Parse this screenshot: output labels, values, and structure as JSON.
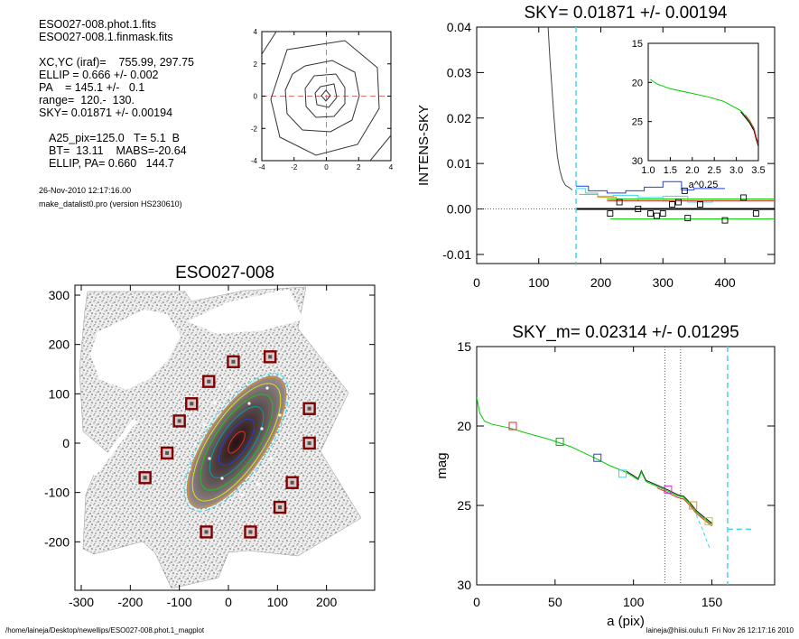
{
  "header": {
    "file1": "ESO027-008.phot.1.fits",
    "file2": "ESO027-008.1.finmask.fits",
    "xcyc": "XC,YC (iraf)=    755.99, 297.75",
    "ellip": "ELLIP = 0.666 +/- 0.002",
    "pa": "PA    = 145.1 +/-   0.1",
    "range": "range=  120.-  130.",
    "sky": "SKY= 0.01871 +/- 0.00194",
    "a25": "A25_pix=125.0   T= 5.1  B",
    "bt": "BT=  13.11    MABS=-20.64",
    "ellip_pa": "ELLIP, PA= 0.660   144.7",
    "date": "26-Nov-2010 12:17:16.00",
    "program": "make_datalist0.pro (version HS230610)"
  },
  "footer": {
    "path": "/home/laineja/Desktop/newellips/ESO027-008.phot.1_magplot",
    "user_date": "laineja@hiisi.oulu.fi  Fri Nov 26 12:17:16 2010"
  },
  "colors": {
    "green": "#00cc00",
    "red": "#e03030",
    "blue": "#2040e0",
    "cyan": "#40d8e8",
    "orange": "#e09020",
    "dark_red": "#800000",
    "gray": "#555555",
    "pink_dash": "#e07070"
  },
  "chart_data": [
    {
      "id": "contour",
      "type": "contour",
      "xlim": [
        -4,
        4
      ],
      "ylim": [
        -4,
        4
      ],
      "xticks": [
        "-4",
        "-2",
        "0",
        "2",
        "4"
      ],
      "yticks": [
        "4",
        "2",
        "0",
        "-2",
        "-4"
      ]
    },
    {
      "id": "sky",
      "type": "line",
      "title": "SKY= 0.01871 +/- 0.00194",
      "ylabel": "INTENS-SKY",
      "xlim": [
        0,
        480
      ],
      "ylim": [
        -0.012,
        0.04
      ],
      "xticks": [
        "0",
        "100",
        "200",
        "300",
        "400"
      ],
      "yticks": [
        "0.04",
        "0.03",
        "0.02",
        "0.01",
        "0.00",
        "-0.01"
      ],
      "sky_radius": 160,
      "profile": [
        [
          115,
          0.04
        ],
        [
          118,
          0.033
        ],
        [
          121,
          0.027
        ],
        [
          124,
          0.021
        ],
        [
          127,
          0.016
        ],
        [
          130,
          0.0115
        ],
        [
          134,
          0.0085
        ],
        [
          138,
          0.0065
        ],
        [
          143,
          0.0052
        ],
        [
          148,
          0.0048
        ],
        [
          154,
          0.0042
        ]
      ],
      "squares": [
        [
          215,
          -0.001
        ],
        [
          230,
          0.0015
        ],
        [
          260,
          0.0
        ],
        [
          280,
          -0.001
        ],
        [
          290,
          -0.0015
        ],
        [
          300,
          -0.001
        ],
        [
          315,
          0.001
        ],
        [
          325,
          0.0015
        ],
        [
          335,
          0.004
        ],
        [
          340,
          -0.002
        ],
        [
          360,
          0.001
        ],
        [
          400,
          -0.0025
        ],
        [
          430,
          0.0025
        ],
        [
          450,
          -0.001
        ]
      ],
      "inset": {
        "xlabel": "a^0.25",
        "xlim": [
          1.0,
          3.5
        ],
        "ylim": [
          15,
          30
        ],
        "xticks": [
          "1.0",
          "1.5",
          "2.0",
          "2.5",
          "3.0",
          "3.5"
        ],
        "yticks": [
          "15",
          "20",
          "25",
          "30"
        ],
        "curve": [
          [
            1.05,
            19.6
          ],
          [
            1.2,
            20.2
          ],
          [
            1.5,
            20.8
          ],
          [
            2.0,
            21.4
          ],
          [
            2.4,
            21.9
          ],
          [
            2.7,
            22.4
          ],
          [
            2.9,
            23.0
          ],
          [
            3.1,
            23.6
          ],
          [
            3.2,
            24.3
          ],
          [
            3.3,
            25.0
          ],
          [
            3.4,
            26.0
          ],
          [
            3.45,
            27.1
          ],
          [
            3.5,
            28.0
          ]
        ]
      }
    },
    {
      "id": "galaxy",
      "type": "image",
      "title": "ESO027-008",
      "xlim": [
        -300,
        300
      ],
      "ylim": [
        -300,
        300
      ],
      "xticks": [
        "-300",
        "-200",
        "-100",
        "0",
        "100",
        "200"
      ],
      "yticks": [
        "300",
        "200",
        "100",
        "0",
        "-100",
        "-200"
      ],
      "boxes": [
        [
          -170,
          -70
        ],
        [
          -125,
          -20
        ],
        [
          -100,
          45
        ],
        [
          -75,
          80
        ],
        [
          -40,
          125
        ],
        [
          10,
          165
        ],
        [
          85,
          175
        ],
        [
          165,
          70
        ],
        [
          165,
          0
        ],
        [
          130,
          -80
        ],
        [
          105,
          -130
        ],
        [
          45,
          -180
        ],
        [
          -45,
          -180
        ]
      ]
    },
    {
      "id": "mag",
      "type": "line",
      "title": "SKY_m=  0.02314 +/- 0.01295",
      "xlabel": "a (pix)",
      "ylabel": "mag",
      "xlim": [
        0,
        190
      ],
      "ylim": [
        15,
        30
      ],
      "xticks": [
        "0",
        "50",
        "100",
        "150"
      ],
      "yticks": [
        "15",
        "20",
        "25",
        "30"
      ],
      "vlines": [
        120,
        130,
        160
      ],
      "profile": [
        [
          0,
          18.2
        ],
        [
          2,
          19.2
        ],
        [
          5,
          19.7
        ],
        [
          10,
          19.9
        ],
        [
          20,
          20.1
        ],
        [
          30,
          20.4
        ],
        [
          45,
          20.8
        ],
        [
          60,
          21.3
        ],
        [
          75,
          22.0
        ],
        [
          85,
          22.5
        ],
        [
          95,
          22.9
        ],
        [
          100,
          23.2
        ],
        [
          103,
          23.4
        ],
        [
          105,
          22.9
        ],
        [
          108,
          23.5
        ],
        [
          115,
          23.8
        ],
        [
          122,
          24.1
        ],
        [
          128,
          24.4
        ],
        [
          132,
          24.5
        ],
        [
          136,
          24.9
        ],
        [
          140,
          25.4
        ],
        [
          145,
          25.8
        ],
        [
          150,
          26.2
        ]
      ],
      "markers": [
        [
          23,
          20.0,
          "red"
        ],
        [
          53,
          21.0,
          "green"
        ],
        [
          77,
          22.0,
          "blue"
        ],
        [
          93,
          23.0,
          "cyan"
        ],
        [
          122,
          24.0,
          "magenta"
        ],
        [
          138,
          25.0,
          "orange"
        ],
        [
          148,
          26.0,
          "yellow"
        ]
      ]
    }
  ]
}
